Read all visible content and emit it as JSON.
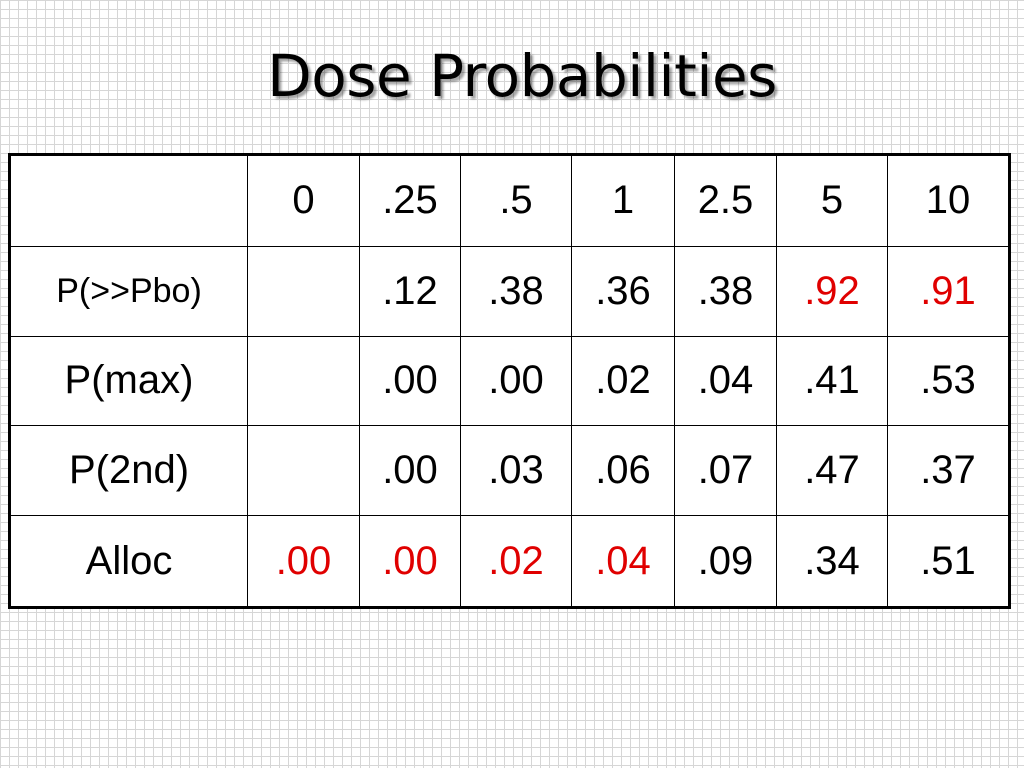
{
  "title": "Dose Probabilities",
  "table": {
    "headers": [
      "",
      "0",
      ".25",
      ".5",
      "1",
      "2.5",
      "5",
      "10"
    ],
    "rows": [
      {
        "label": "P(>>Pbo)",
        "cells": [
          "",
          ".12",
          ".38",
          ".36",
          ".38",
          ".92",
          ".91"
        ],
        "highlight": [
          false,
          false,
          false,
          false,
          false,
          true,
          true
        ]
      },
      {
        "label": "P(max)",
        "cells": [
          "",
          ".00",
          ".00",
          ".02",
          ".04",
          ".41",
          ".53"
        ],
        "highlight": [
          false,
          false,
          false,
          false,
          false,
          false,
          false
        ]
      },
      {
        "label": "P(2nd)",
        "cells": [
          "",
          ".00",
          ".03",
          ".06",
          ".07",
          ".47",
          ".37"
        ],
        "highlight": [
          false,
          false,
          false,
          false,
          false,
          false,
          false
        ]
      },
      {
        "label": "Alloc",
        "cells": [
          ".00",
          ".00",
          ".02",
          ".04",
          ".09",
          ".34",
          ".51"
        ],
        "highlight": [
          true,
          true,
          true,
          true,
          false,
          false,
          false
        ]
      }
    ]
  },
  "colors": {
    "highlight": "#e00000",
    "text": "#000000",
    "grid_lines": "#d6d6d6"
  }
}
